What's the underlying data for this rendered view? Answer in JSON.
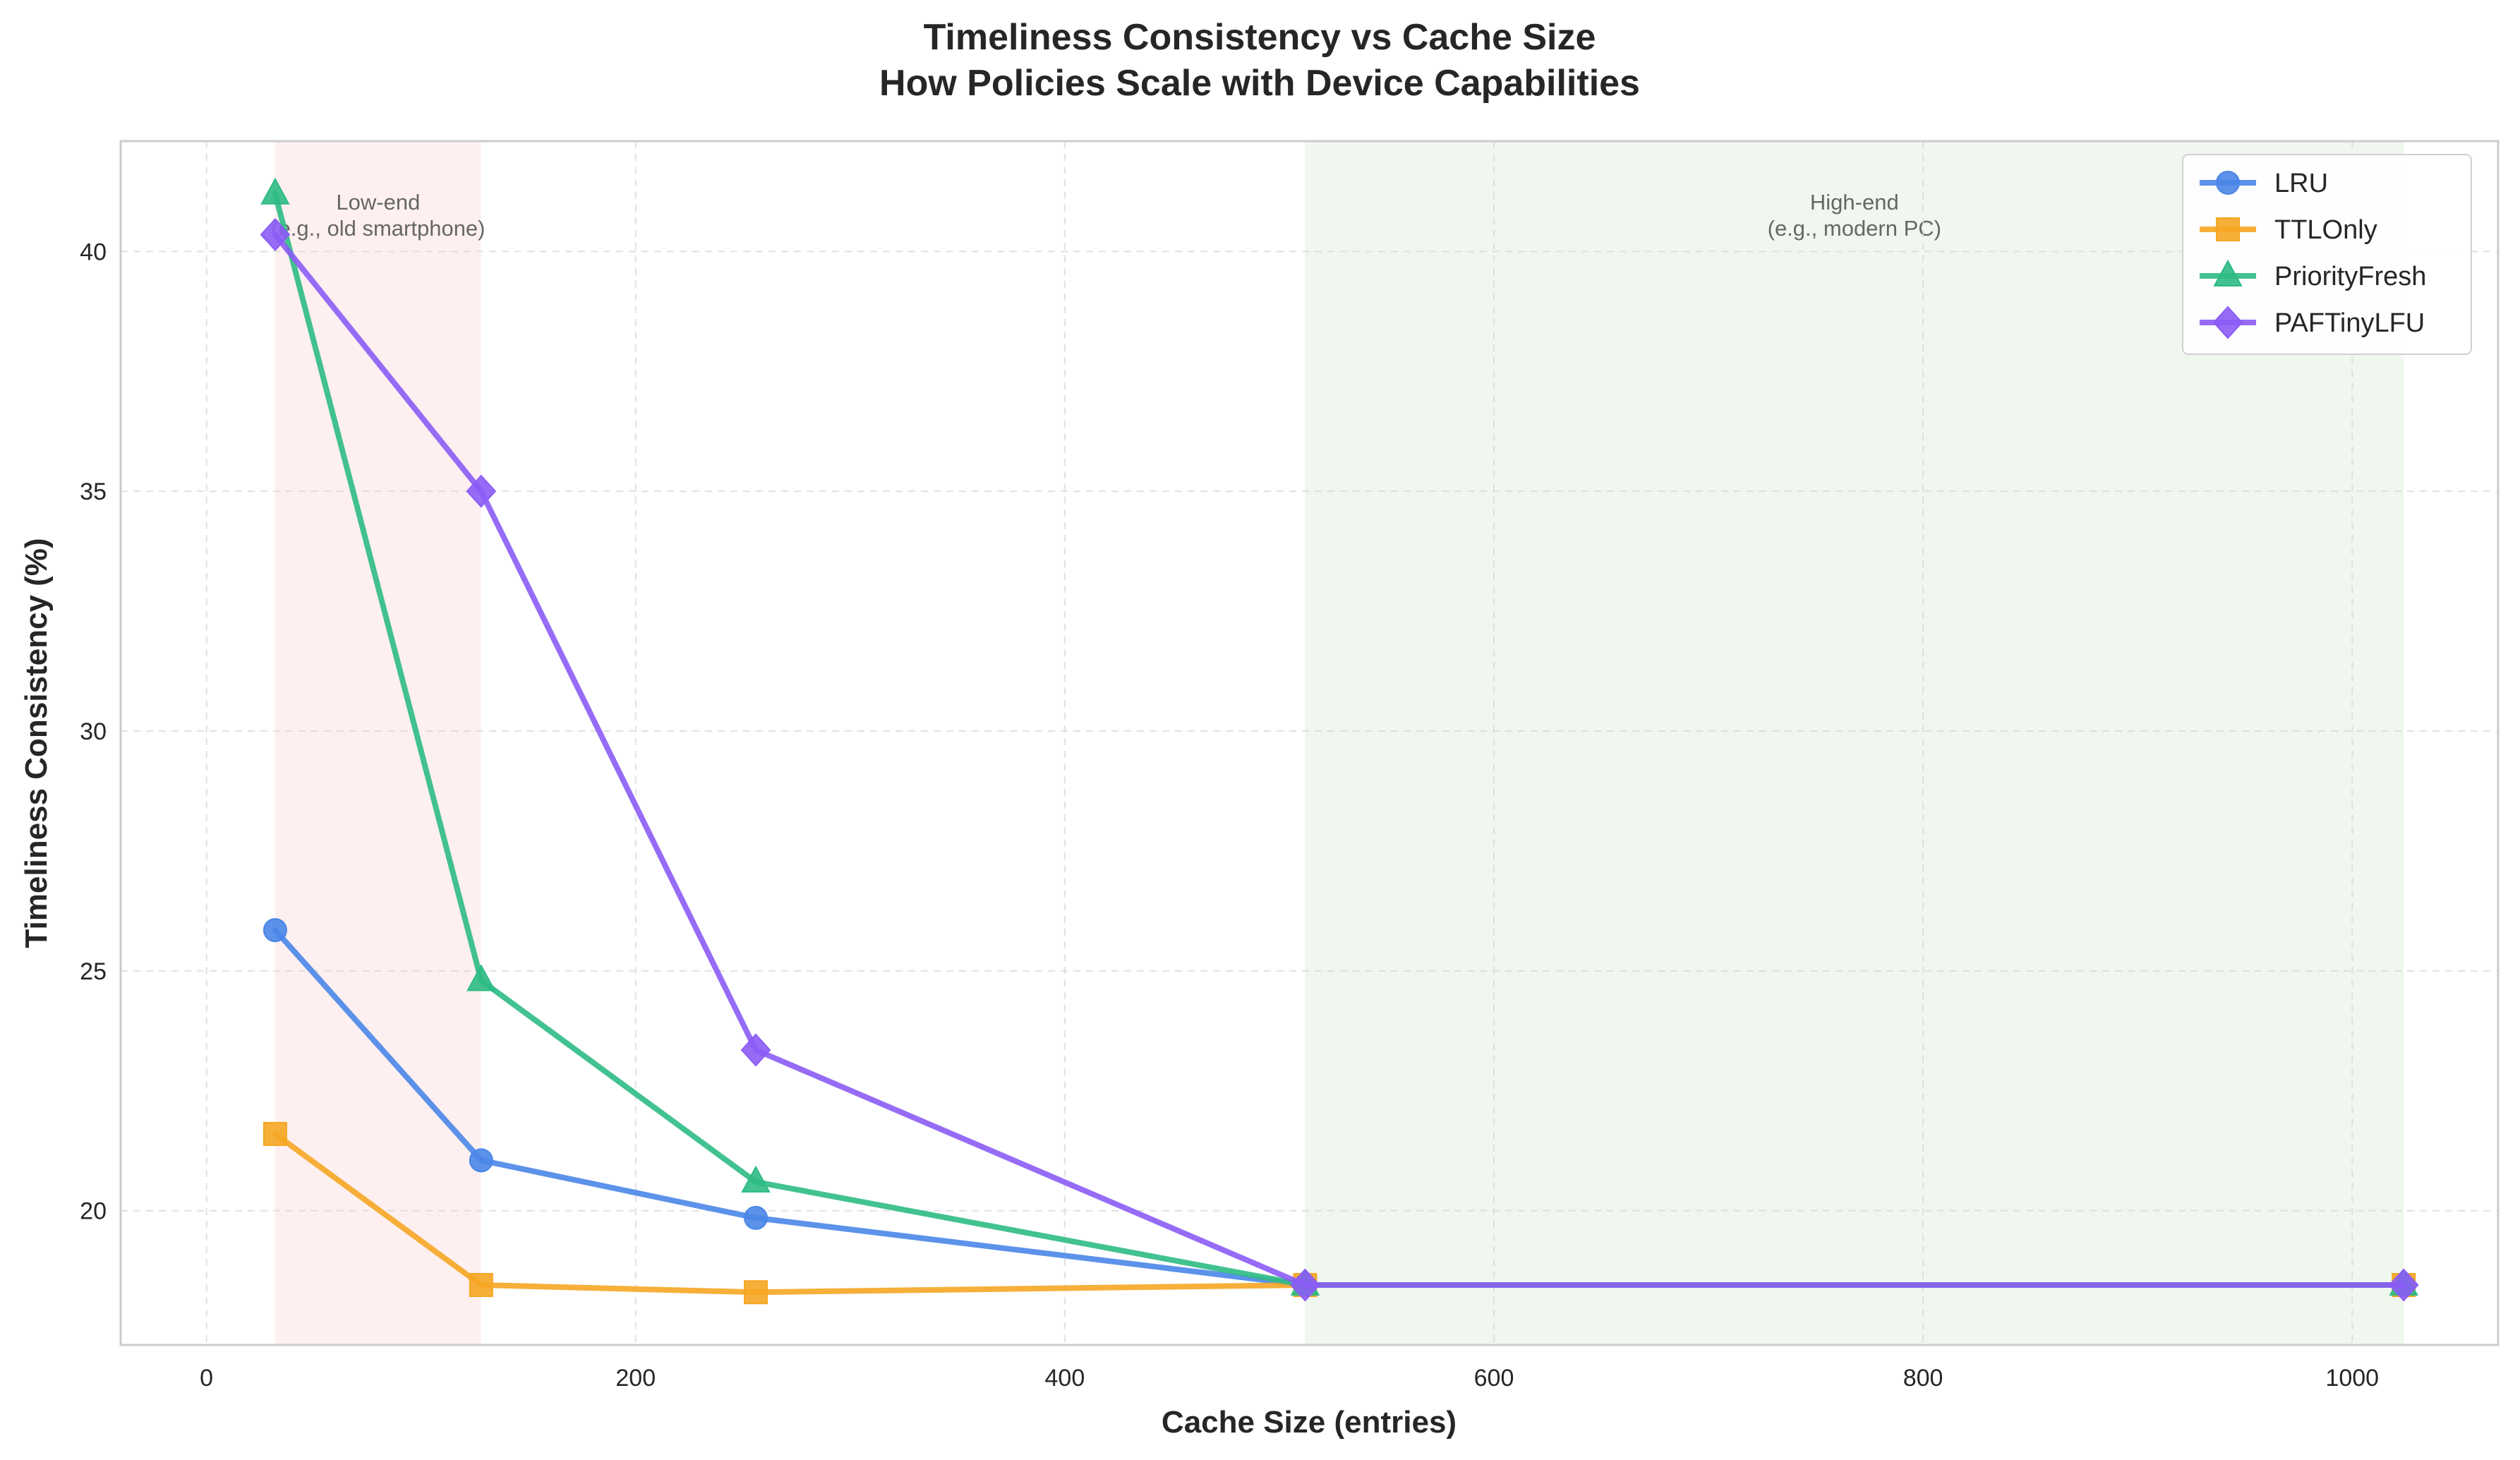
{
  "chart_data": {
    "type": "line",
    "title": [
      "Timeliness Consistency vs Cache Size",
      "How Policies Scale with Device Capabilities"
    ],
    "xlabel": "Cache Size (entries)",
    "ylabel": "Timeliness Consistency (%)",
    "xlim": [
      -40,
      1068
    ],
    "ylim": [
      17.2,
      42.3
    ],
    "xticks": [
      0,
      200,
      400,
      600,
      800,
      1000
    ],
    "yticks": [
      20,
      25,
      30,
      35,
      40
    ],
    "grid": true,
    "legend_position": "top-right",
    "regions": [
      {
        "label": [
          "Low-end",
          "(e.g., old smartphone)"
        ],
        "x_start": 32,
        "x_end": 128,
        "color": "#fde3e3"
      },
      {
        "label": [
          "High-end",
          "(e.g., modern PC)"
        ],
        "x_start": 512,
        "x_end": 1024,
        "color": "#e2f0e2"
      }
    ],
    "x": [
      32,
      128,
      256,
      512,
      1024
    ],
    "series": [
      {
        "name": "LRU",
        "color": "#4a86e8",
        "marker": "circle",
        "values": [
          25.85,
          21.05,
          19.85,
          18.45,
          18.45
        ]
      },
      {
        "name": "TTLOnly",
        "color": "#f5a623",
        "marker": "square",
        "values": [
          21.6,
          18.45,
          18.3,
          18.45,
          18.45
        ]
      },
      {
        "name": "PriorityFresh",
        "color": "#2dbb84",
        "marker": "triangle",
        "values": [
          41.2,
          24.8,
          20.6,
          18.45,
          18.45
        ]
      },
      {
        "name": "PAFTinyLFU",
        "color": "#8b5cf6",
        "marker": "diamond",
        "values": [
          40.35,
          35.0,
          23.35,
          18.45,
          18.45
        ]
      }
    ]
  }
}
